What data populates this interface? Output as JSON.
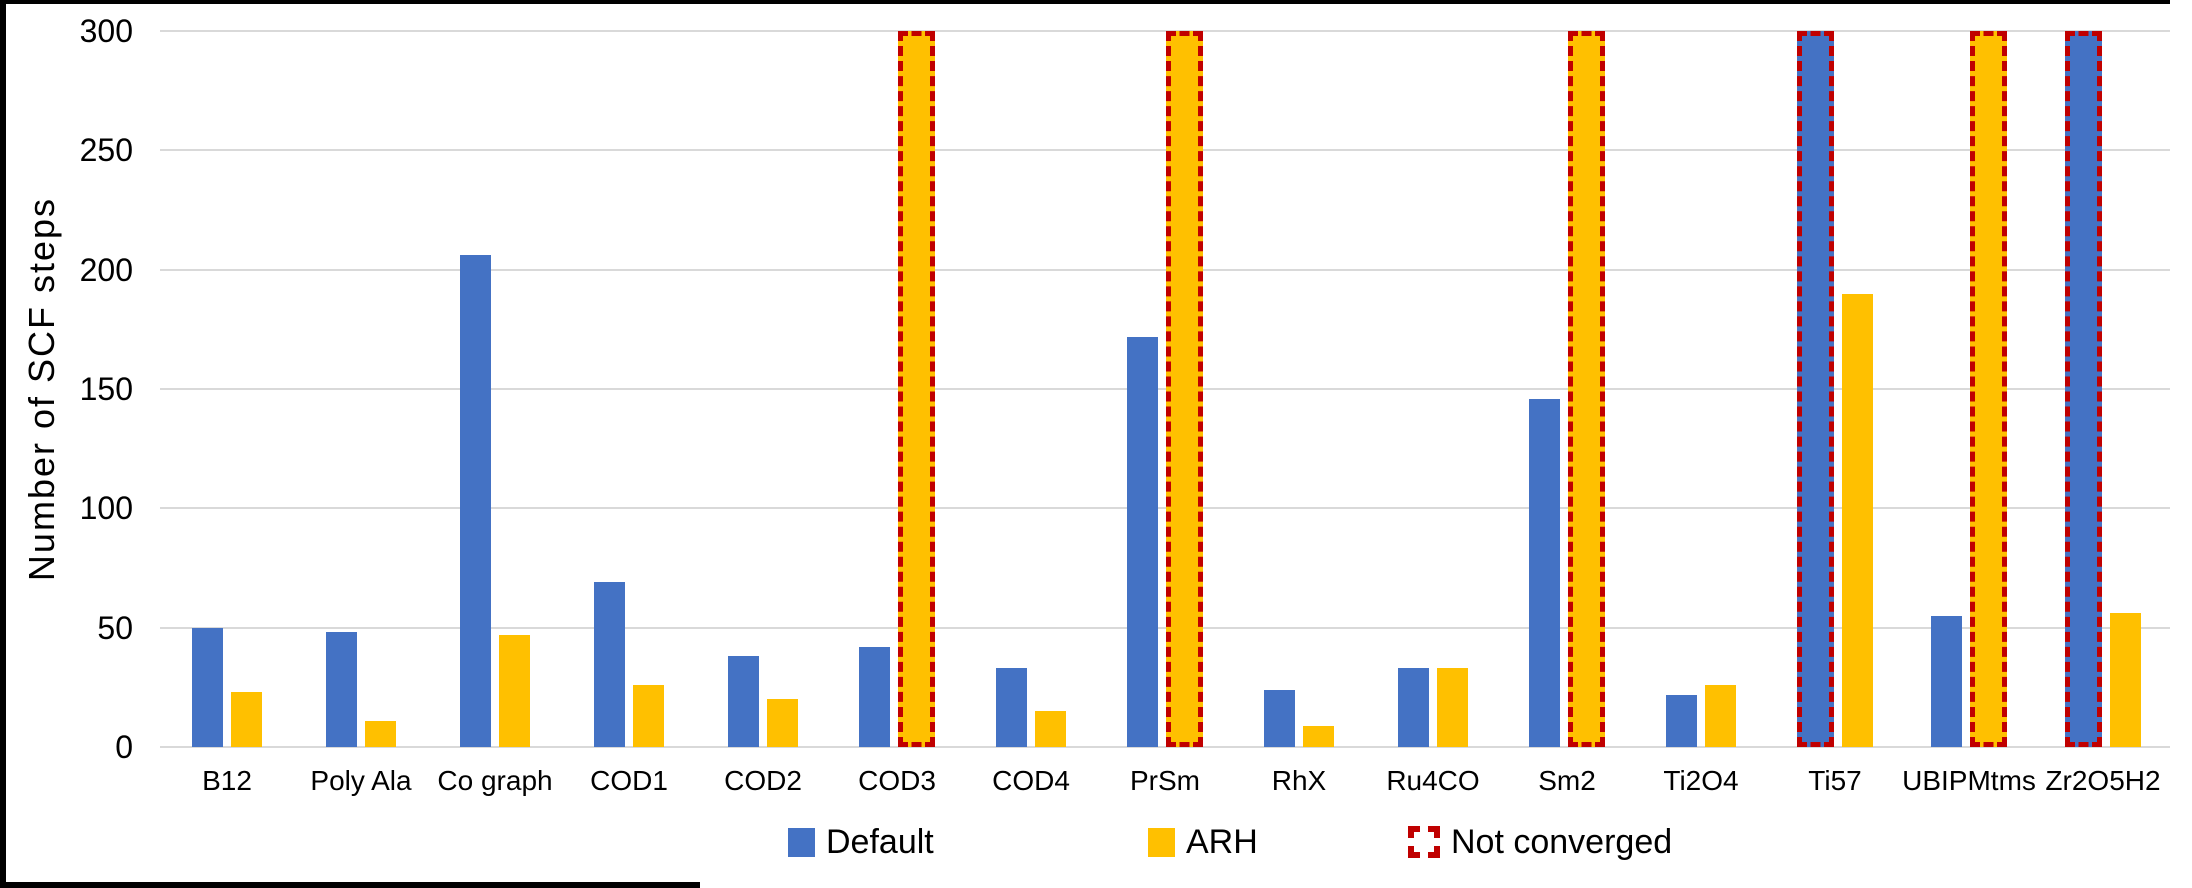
{
  "chart_data": {
    "type": "bar",
    "title": "",
    "xlabel": "",
    "ylabel": "Number of SCF steps",
    "ylim": [
      0,
      300
    ],
    "yticks": [
      0,
      50,
      100,
      150,
      200,
      250,
      300
    ],
    "grid": true,
    "legend_position": "bottom",
    "categories": [
      "B12",
      "Poly Ala",
      "Co graph",
      "COD1",
      "COD2",
      "COD3",
      "COD4",
      "PrSm",
      "RhX",
      "Ru4CO",
      "Sm2",
      "Ti2O4",
      "Ti57",
      "UBIPMtms",
      "Zr2O5H2"
    ],
    "series": [
      {
        "name": "Default",
        "color": "#4472C4",
        "values": [
          50,
          48,
          206,
          69,
          38,
          42,
          33,
          172,
          24,
          33,
          146,
          22,
          300,
          55,
          300
        ],
        "not_converged": [
          false,
          false,
          false,
          false,
          false,
          false,
          false,
          false,
          false,
          false,
          false,
          false,
          true,
          false,
          true
        ]
      },
      {
        "name": "ARH",
        "color": "#FFC000",
        "values": [
          23,
          11,
          47,
          26,
          20,
          300,
          15,
          300,
          9,
          33,
          300,
          26,
          190,
          300,
          56
        ],
        "not_converged": [
          false,
          false,
          false,
          false,
          false,
          true,
          false,
          true,
          false,
          false,
          true,
          false,
          false,
          true,
          false
        ]
      }
    ],
    "legend": [
      {
        "label": "Default",
        "style": "solid",
        "color": "#4472C4"
      },
      {
        "label": "ARH",
        "style": "solid",
        "color": "#FFC000"
      },
      {
        "label": "Not converged",
        "style": "dashed",
        "color": "#C00000"
      }
    ],
    "not_converged_meaning": "bar reached cap of 300 SCF steps without convergence",
    "gridline_color": "#D9D9D9"
  }
}
